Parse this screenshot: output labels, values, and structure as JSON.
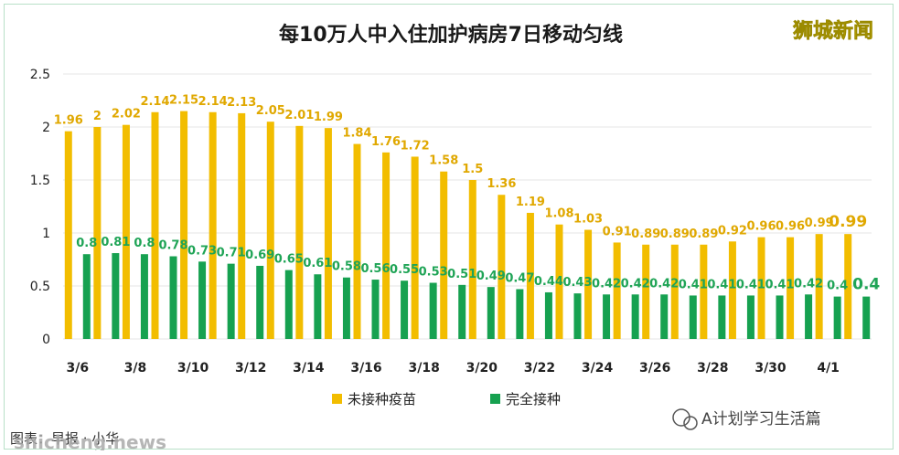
{
  "header": {
    "title": "每10万人中入住加护病房7日移动匀线",
    "brand": "狮城新闻"
  },
  "footer": {
    "source": "图表：早报 · 小华",
    "wechat_name": "A计划学习生活篇",
    "watermark": "shicheng.news"
  },
  "colors": {
    "unvaccinated": "#f2bd00",
    "vaccinated": "#16a150",
    "label_unvaccinated": "#e0a800",
    "label_vaccinated": "#1fa456",
    "grid": "#e6e6e6"
  },
  "chart_data": {
    "type": "bar",
    "title": "每10万人中入住加护病房7日移动匀线",
    "categories": [
      "3/6",
      "3/7",
      "3/8",
      "3/9",
      "3/10",
      "3/11",
      "3/12",
      "3/13",
      "3/14",
      "3/15",
      "3/16",
      "3/17",
      "3/18",
      "3/19",
      "3/20",
      "3/21",
      "3/22",
      "3/23",
      "3/24",
      "3/25",
      "3/26",
      "3/27",
      "3/28",
      "3/29",
      "3/30",
      "3/31",
      "4/1",
      "4/2"
    ],
    "x_tick_labels": [
      "3/6",
      "3/8",
      "3/10",
      "3/12",
      "3/14",
      "3/16",
      "3/18",
      "3/20",
      "3/22",
      "3/24",
      "3/26",
      "3/28",
      "3/30",
      "4/1"
    ],
    "series": [
      {
        "name": "未接种疫苗",
        "color": "#f2bd00",
        "values": [
          1.96,
          2,
          2.02,
          2.14,
          2.15,
          2.14,
          2.13,
          2.05,
          2.01,
          1.99,
          1.84,
          1.76,
          1.72,
          1.58,
          1.5,
          1.36,
          1.19,
          1.08,
          1.03,
          0.91,
          0.89,
          0.89,
          0.89,
          0.92,
          0.96,
          0.96,
          0.99,
          0.99
        ]
      },
      {
        "name": "完全接种",
        "color": "#16a150",
        "values": [
          0.8,
          0.81,
          0.8,
          0.78,
          0.73,
          0.71,
          0.69,
          0.65,
          0.61,
          0.58,
          0.56,
          0.55,
          0.53,
          0.51,
          0.49,
          0.47,
          0.44,
          0.43,
          0.42,
          0.42,
          0.42,
          0.41,
          0.41,
          0.41,
          0.41,
          0.42,
          0.4,
          0.4
        ]
      }
    ],
    "y_ticks": [
      "0",
      "0.5",
      "1",
      "1.5",
      "2",
      "2.5"
    ],
    "ylim": [
      0,
      2.5
    ],
    "xlabel": "",
    "ylabel": "",
    "grid": true,
    "legend": "bottom-center"
  }
}
